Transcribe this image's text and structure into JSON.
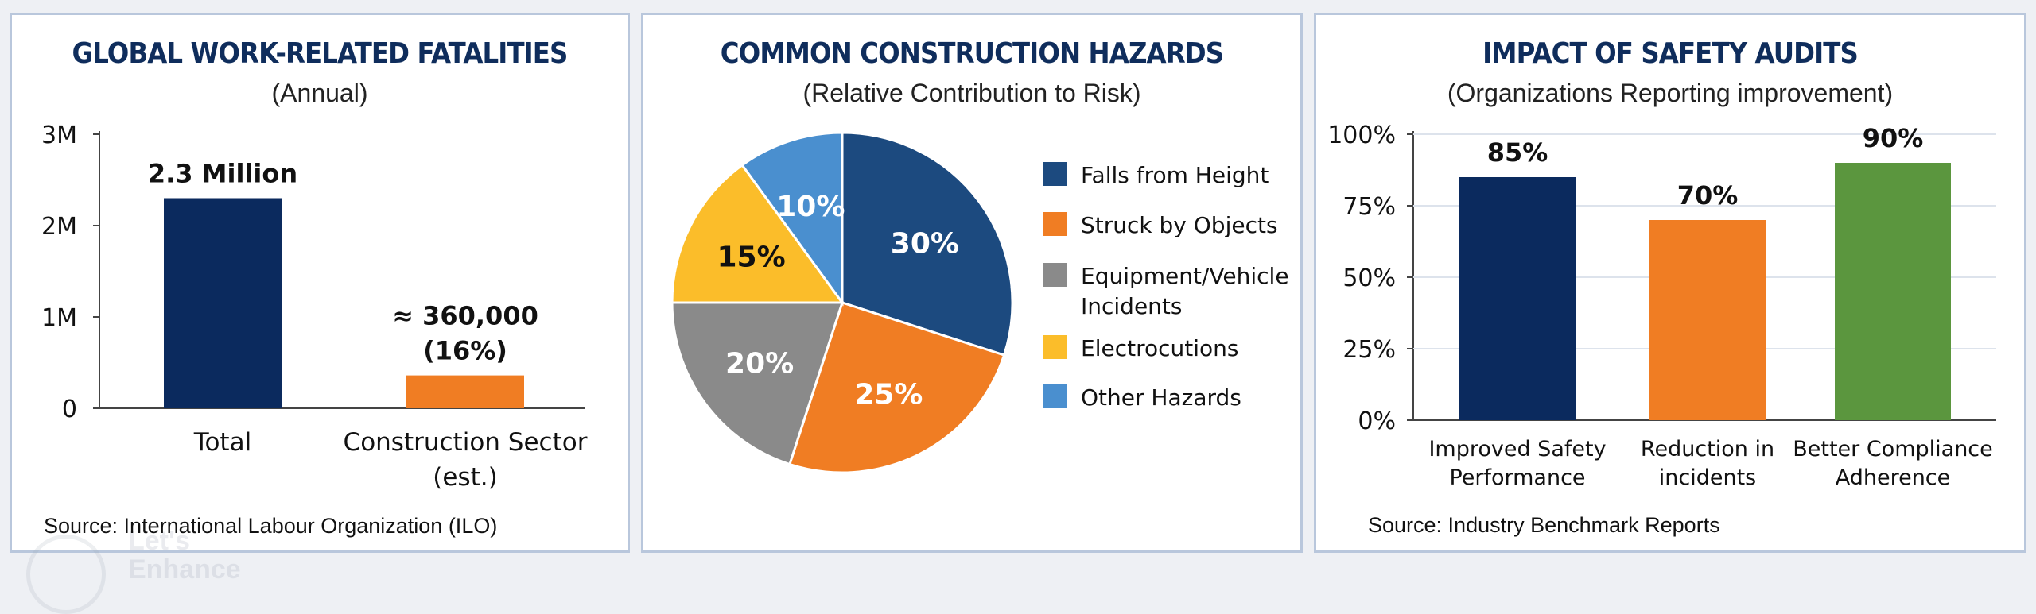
{
  "watermark": {
    "line1": "Let's",
    "line2": "Enhance"
  },
  "chart_data": [
    {
      "type": "bar",
      "title": "GLOBAL WORK-RELATED FATALITIES",
      "subtitle": "(Annual)",
      "categories": [
        "Total",
        "Construction Sector\n(est.)"
      ],
      "values": [
        2300000,
        360000
      ],
      "data_labels": [
        "2.3 Million",
        "≈ 360,000\n(16%)"
      ],
      "colors": [
        "#0b2a5e",
        "#f07d23"
      ],
      "yticks": [
        0,
        1000000,
        2000000,
        3000000
      ],
      "ytick_labels": [
        "0",
        "1M",
        "2M",
        "3M"
      ],
      "ylim": [
        0,
        3000000
      ],
      "source": "Source: International Labour Organization (ILO)"
    },
    {
      "type": "pie",
      "title": "COMMON CONSTRUCTION HAZARDS",
      "subtitle": "(Relative Contribution to Risk)",
      "labels": [
        "Falls from Height",
        "Struck by Objects",
        "Equipment/Vehicle\nIncidents",
        "Electrocutions",
        "Other Hazards"
      ],
      "values": [
        30,
        25,
        20,
        15,
        10
      ],
      "data_labels": [
        "30%",
        "25%",
        "20%",
        "15%",
        "10%"
      ],
      "colors": [
        "#1c4a7f",
        "#f07d23",
        "#8a8a8a",
        "#fbbd2a",
        "#4a8fcf"
      ],
      "legend": "right"
    },
    {
      "type": "bar",
      "title": "IMPACT OF SAFETY AUDITS",
      "subtitle": "(Organizations Reporting improvement)",
      "categories": [
        "Improved Safety\nPerformance",
        "Reduction in\nincidents",
        "Better Compliance\nAdherence"
      ],
      "values": [
        85,
        70,
        90
      ],
      "data_labels": [
        "85%",
        "70%",
        "90%"
      ],
      "colors": [
        "#0b2a5e",
        "#f07d23",
        "#5b963e"
      ],
      "yticks": [
        0,
        25,
        50,
        75,
        100
      ],
      "ytick_labels": [
        "0%",
        "25%",
        "50%",
        "75%",
        "100%"
      ],
      "ylim": [
        0,
        100
      ],
      "source": "Source: Industry Benchmark Reports"
    }
  ]
}
